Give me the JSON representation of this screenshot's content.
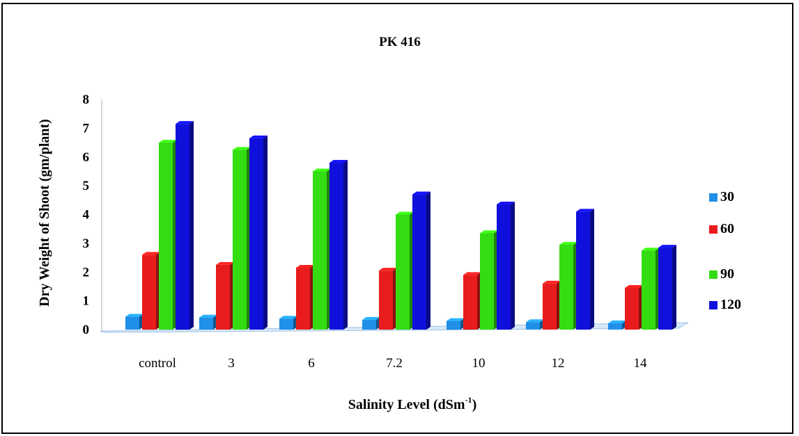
{
  "chart_data": {
    "type": "bar",
    "title": "PK 416",
    "ylabel": "Dry  Weight of Shoot (gm/plant)",
    "xlabel_main": "Salinity Level (dSm",
    "xlabel_sup": "-1",
    "xlabel_tail": ")",
    "ylim": [
      0,
      8
    ],
    "yticks": [
      "0",
      "1",
      "2",
      "3",
      "4",
      "5",
      "6",
      "7",
      "8"
    ],
    "categories": [
      "control",
      "3",
      "6",
      "7.2",
      "10",
      "12",
      "14"
    ],
    "legend_position": "right",
    "series": [
      {
        "name": "30",
        "color": "#1f8fe8",
        "values": [
          0.45,
          0.42,
          0.38,
          0.34,
          0.3,
          0.26,
          0.22
        ]
      },
      {
        "name": "60",
        "color": "#e81c1c",
        "values": [
          2.6,
          2.25,
          2.15,
          2.05,
          1.9,
          1.6,
          1.45
        ]
      },
      {
        "name": "90",
        "color": "#33dd11",
        "values": [
          6.5,
          6.25,
          5.5,
          4.0,
          3.35,
          2.95,
          2.75
        ]
      },
      {
        "name": "120",
        "color": "#1010dd",
        "values": [
          7.15,
          6.65,
          5.8,
          4.7,
          4.35,
          4.1,
          2.85
        ]
      }
    ]
  }
}
